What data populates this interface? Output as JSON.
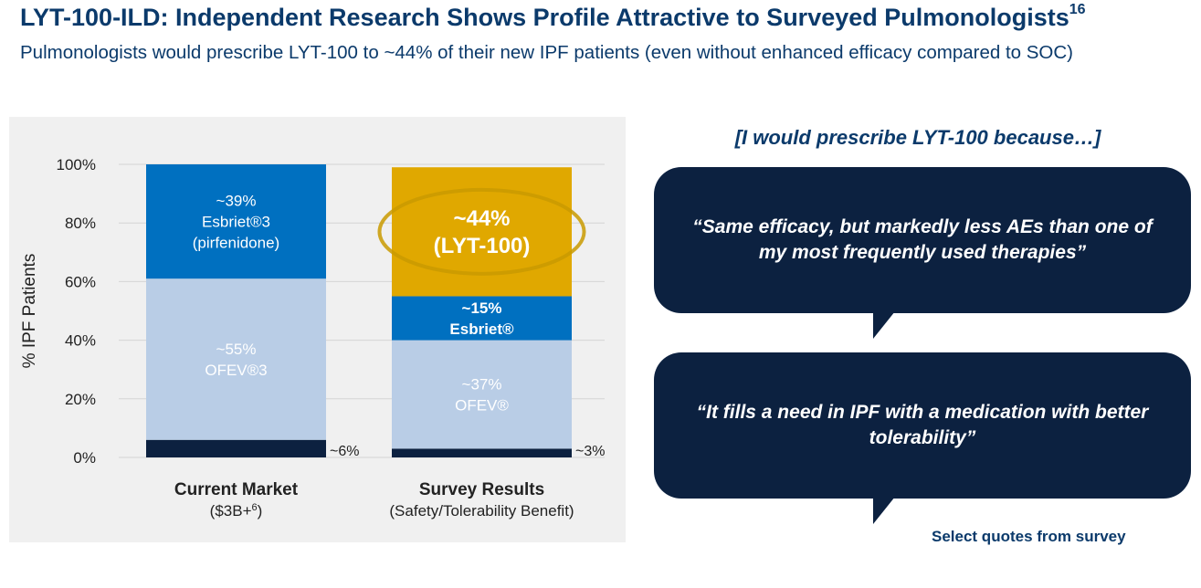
{
  "header": {
    "title": "LYT-100-ILD: Independent Research Shows Profile Attractive to Surveyed Pulmonologists",
    "title_sup": "16",
    "subtitle": "Pulmonologists would prescribe LYT-100 to ~44% of their new IPF patients (even without enhanced efficacy compared to SOC)"
  },
  "chart_data": {
    "type": "bar",
    "stacked": true,
    "ylabel": "% IPF Patients",
    "ylim": [
      0,
      100
    ],
    "yticks": [
      "0%",
      "20%",
      "40%",
      "60%",
      "80%",
      "100%"
    ],
    "grid": true,
    "categories": [
      {
        "label": "Current Market",
        "sublabel": "($3B+",
        "sublabel_sup": "6",
        "sublabel_end": ")"
      },
      {
        "label": "Survey Results",
        "sublabel": "(Safety/Tolerability Benefit)",
        "sublabel_sup": "",
        "sublabel_end": ""
      }
    ],
    "series": [
      {
        "key": "other",
        "values": [
          6,
          3
        ],
        "color": "#0c2140"
      },
      {
        "key": "ofev",
        "values": [
          55,
          37
        ],
        "color": "#b9cde6"
      },
      {
        "key": "esbriet",
        "values": [
          39,
          15
        ],
        "color": "#0070c0"
      },
      {
        "key": "lyt100",
        "values": [
          0,
          44
        ],
        "color": "#e0a800"
      }
    ],
    "segment_labels": [
      [
        {
          "series": "other",
          "outside": "~6%"
        },
        {
          "series": "ofev",
          "lines": [
            "~55%",
            "OFEV®3"
          ]
        },
        {
          "series": "esbriet",
          "lines": [
            "~39%",
            "Esbriet®3",
            "(pirfenidone)"
          ]
        }
      ],
      [
        {
          "series": "other",
          "outside": "~3%"
        },
        {
          "series": "ofev",
          "lines": [
            "~37%",
            "OFEV®"
          ]
        },
        {
          "series": "esbriet",
          "lines": [
            "~15%",
            "Esbriet®"
          ]
        },
        {
          "series": "lyt100",
          "lines": [
            "~44%",
            "(LYT-100)"
          ]
        }
      ]
    ]
  },
  "quotes": {
    "header": "[I would prescribe LYT-100 because…]",
    "items": [
      "“Same efficacy, but markedly less AEs than one of my most frequently used therapies”",
      "“It fills a need in IPF with a medication with better tolerability”"
    ],
    "footnote": "Select quotes from survey"
  }
}
